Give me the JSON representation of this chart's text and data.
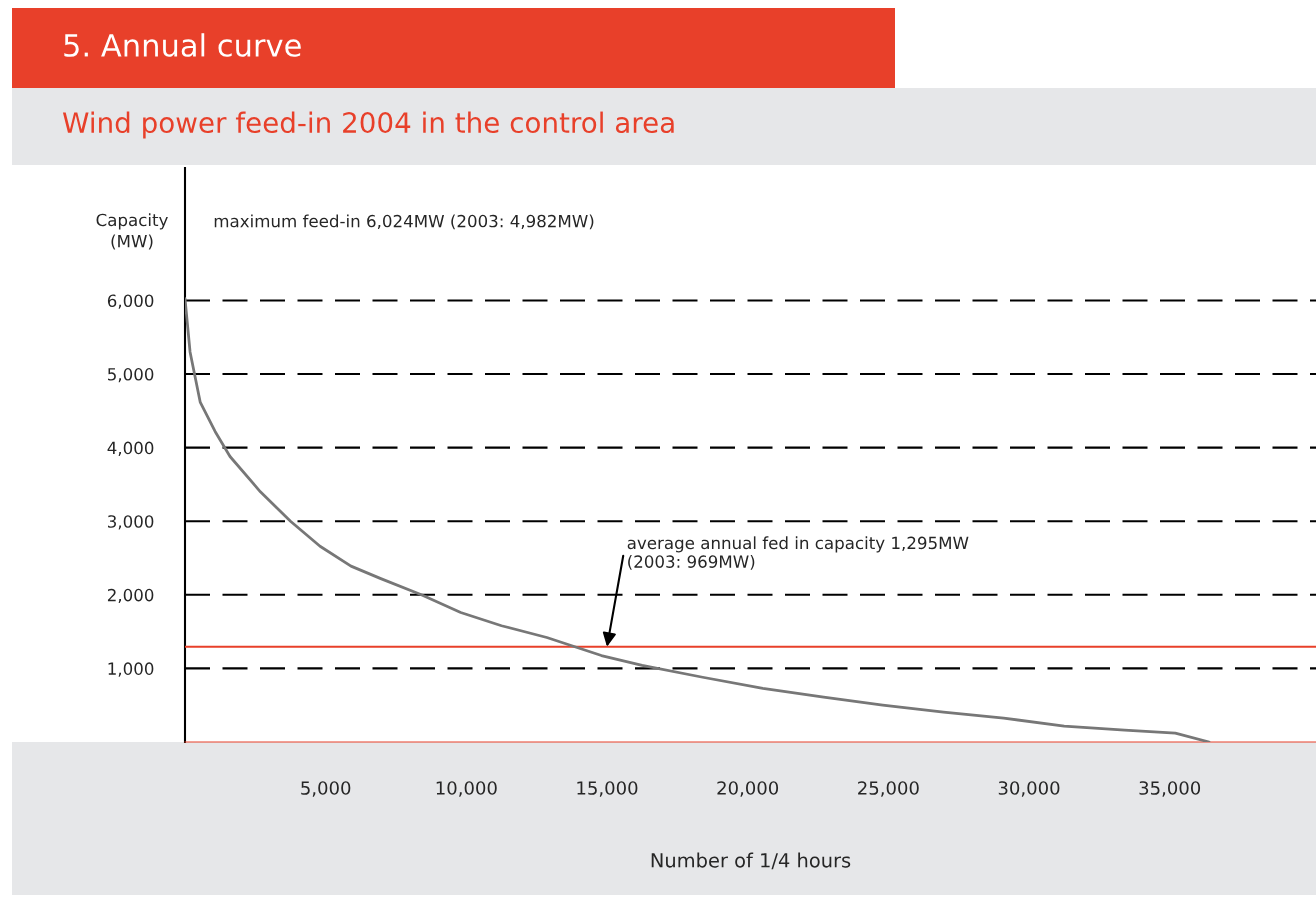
{
  "chart_data": {
    "type": "line",
    "title": "5. Annual curve",
    "subtitle": "Wind power feed-in 2004 in the control area",
    "xlabel": "Number of 1/4 hours",
    "ylabel": "Capacity\n(MW)",
    "x": [
      0,
      180,
      540,
      1070,
      1600,
      2680,
      3750,
      4800,
      5900,
      6960,
      8400,
      9800,
      11250,
      12860,
      14800,
      16250,
      18400,
      20540,
      22700,
      24800,
      26960,
      29100,
      31250,
      33400,
      35200,
      36400
    ],
    "series": [
      {
        "color": "#777777",
        "values": [
          6024,
          5300,
          4620,
          4220,
          3880,
          3400,
          3000,
          2660,
          2390,
          2220,
          2000,
          1760,
          1580,
          1420,
          1175,
          1040,
          880,
          730,
          610,
          500,
          405,
          325,
          215,
          160,
          120,
          0
        ]
      }
    ],
    "xlim": [
      0,
      40200
    ],
    "xticks": [
      {
        "value": 5000,
        "label": "5,000"
      },
      {
        "value": 10000,
        "label": "10,000"
      },
      {
        "value": 15000,
        "label": "15,000"
      },
      {
        "value": 20000,
        "label": "20,000"
      },
      {
        "value": 25000,
        "label": "25,000"
      },
      {
        "value": 30000,
        "label": "30,000"
      },
      {
        "value": 35000,
        "label": "35,000"
      }
    ],
    "ylim": [
      0,
      7800
    ],
    "yticks": [
      {
        "value": 1000,
        "label": "1,000"
      },
      {
        "value": 2000,
        "label": "2,000"
      },
      {
        "value": 3000,
        "label": "3,000"
      },
      {
        "value": 4000,
        "label": "4,000"
      },
      {
        "value": 5000,
        "label": "5,000"
      },
      {
        "value": 6000,
        "label": "6,000"
      }
    ],
    "grid": "y",
    "line_style": "solid",
    "ref_lines": [
      {
        "axis": "y",
        "value": 1295,
        "color": "#e8402a"
      }
    ],
    "annotations": [
      "maximum feed-in 6,024MW (2003: 4,982MW)",
      {
        "text": "average annual fed in capacity 1,295MW\n(2003: 969MW)",
        "x": 15000,
        "y": 1295
      }
    ]
  }
}
